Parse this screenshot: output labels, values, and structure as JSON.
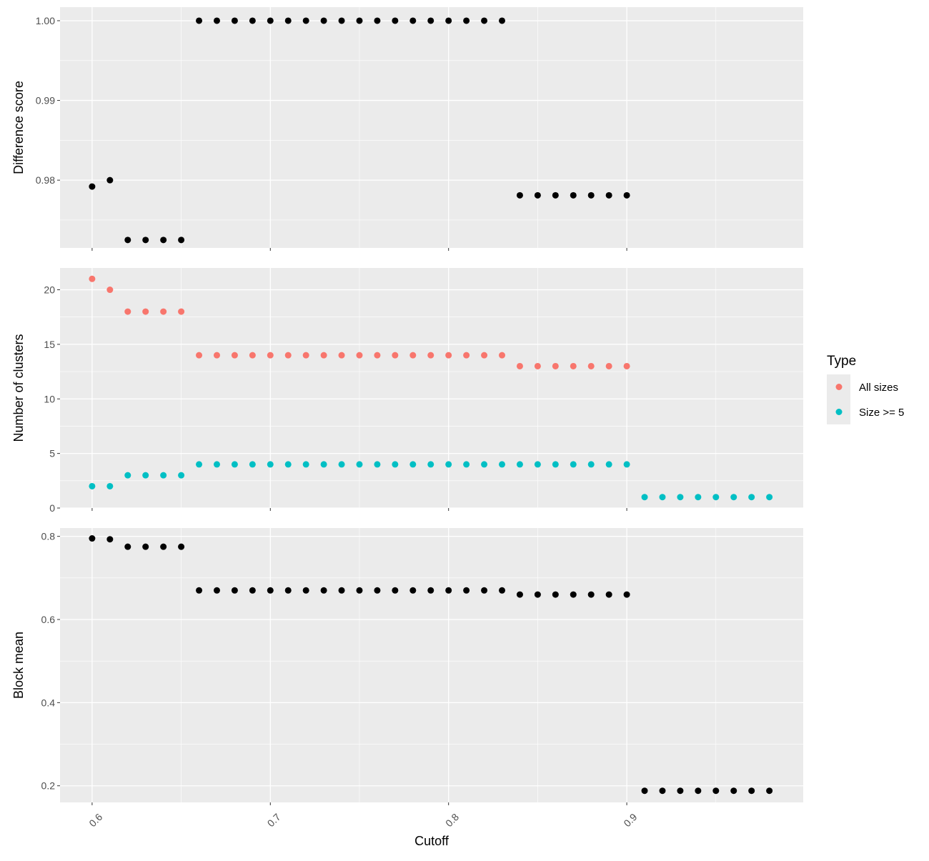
{
  "chart_data": [
    {
      "type": "scatter",
      "ylabel": "Difference score",
      "ylim": [
        0.9715,
        1.0017
      ],
      "y_ticks": [
        0.98,
        0.99,
        1.0
      ],
      "y_tick_labels": [
        "0.98",
        "0.99",
        "1.00"
      ],
      "x": [
        0.6,
        0.61,
        0.62,
        0.63,
        0.64,
        0.65,
        0.66,
        0.67,
        0.68,
        0.69,
        0.7,
        0.71,
        0.72,
        0.73,
        0.74,
        0.75,
        0.76,
        0.77,
        0.78,
        0.79,
        0.8,
        0.81,
        0.82,
        0.83,
        0.84,
        0.85,
        0.86,
        0.87,
        0.88,
        0.89,
        0.9
      ],
      "series": [
        {
          "color": "#000000",
          "values": [
            0.9792,
            0.98,
            0.9725,
            0.9725,
            0.9725,
            0.9725,
            1.0,
            1.0,
            1.0,
            1.0,
            1.0,
            1.0,
            1.0,
            1.0,
            1.0,
            1.0,
            1.0,
            1.0,
            1.0,
            1.0,
            1.0,
            1.0,
            1.0,
            1.0,
            0.9781,
            0.9781,
            0.9781,
            0.9781,
            0.9781,
            0.9781,
            0.9781
          ]
        }
      ]
    },
    {
      "type": "scatter",
      "ylabel": "Number of clusters",
      "ylim": [
        0,
        22
      ],
      "y_ticks": [
        0,
        5,
        10,
        15,
        20
      ],
      "y_tick_labels": [
        "0",
        "5",
        "10",
        "15",
        "20"
      ],
      "x": [
        0.6,
        0.61,
        0.62,
        0.63,
        0.64,
        0.65,
        0.66,
        0.67,
        0.68,
        0.69,
        0.7,
        0.71,
        0.72,
        0.73,
        0.74,
        0.75,
        0.76,
        0.77,
        0.78,
        0.79,
        0.8,
        0.81,
        0.82,
        0.83,
        0.84,
        0.85,
        0.86,
        0.87,
        0.88,
        0.89,
        0.9,
        0.91,
        0.92,
        0.93,
        0.94,
        0.95,
        0.96,
        0.97,
        0.98
      ],
      "series": [
        {
          "name": "All sizes",
          "color": "#F8766D",
          "values": [
            21,
            20,
            18,
            18,
            18,
            18,
            14,
            14,
            14,
            14,
            14,
            14,
            14,
            14,
            14,
            14,
            14,
            14,
            14,
            14,
            14,
            14,
            14,
            14,
            13,
            13,
            13,
            13,
            13,
            13,
            13,
            null,
            null,
            null,
            null,
            null,
            null,
            null,
            null
          ]
        },
        {
          "name": "Size >= 5",
          "color": "#00BFC4",
          "values": [
            2,
            2,
            3,
            3,
            3,
            3,
            4,
            4,
            4,
            4,
            4,
            4,
            4,
            4,
            4,
            4,
            4,
            4,
            4,
            4,
            4,
            4,
            4,
            4,
            4,
            4,
            4,
            4,
            4,
            4,
            4,
            1,
            1,
            1,
            1,
            1,
            1,
            1,
            1
          ]
        }
      ]
    },
    {
      "type": "scatter",
      "ylabel": "Block mean",
      "xlabel": "Cutoff",
      "ylim": [
        0.16,
        0.82
      ],
      "y_ticks": [
        0.2,
        0.4,
        0.6,
        0.8
      ],
      "y_tick_labels": [
        "0.2",
        "0.4",
        "0.6",
        "0.8"
      ],
      "x": [
        0.6,
        0.61,
        0.62,
        0.63,
        0.64,
        0.65,
        0.66,
        0.67,
        0.68,
        0.69,
        0.7,
        0.71,
        0.72,
        0.73,
        0.74,
        0.75,
        0.76,
        0.77,
        0.78,
        0.79,
        0.8,
        0.81,
        0.82,
        0.83,
        0.84,
        0.85,
        0.86,
        0.87,
        0.88,
        0.89,
        0.9,
        0.91,
        0.92,
        0.93,
        0.94,
        0.95,
        0.96,
        0.97,
        0.98
      ],
      "series": [
        {
          "color": "#000000",
          "values": [
            0.795,
            0.793,
            0.775,
            0.775,
            0.775,
            0.775,
            0.67,
            0.67,
            0.67,
            0.67,
            0.67,
            0.67,
            0.67,
            0.67,
            0.67,
            0.67,
            0.67,
            0.67,
            0.67,
            0.67,
            0.67,
            0.67,
            0.67,
            0.67,
            0.66,
            0.66,
            0.66,
            0.66,
            0.66,
            0.66,
            0.66,
            0.188,
            0.188,
            0.188,
            0.188,
            0.188,
            0.188,
            0.188,
            0.188
          ]
        }
      ]
    }
  ],
  "shared_x_axis": {
    "label": "Cutoff",
    "xlim": [
      0.582,
      0.999
    ],
    "ticks": [
      0.6,
      0.7,
      0.8,
      0.9
    ],
    "tick_labels": [
      "0.6",
      "0.7",
      "0.8",
      "0.9"
    ]
  },
  "legend": {
    "title": "Type",
    "placement": "right",
    "items": [
      {
        "label": "All sizes",
        "color": "#F8766D"
      },
      {
        "label": "Size >= 5",
        "color": "#00BFC4"
      }
    ]
  },
  "style": {
    "panel_background": "#EBEBEB",
    "grid_color": "#FFFFFF",
    "axis_text_color": "#4D4D4D",
    "title_color": "#000000"
  }
}
